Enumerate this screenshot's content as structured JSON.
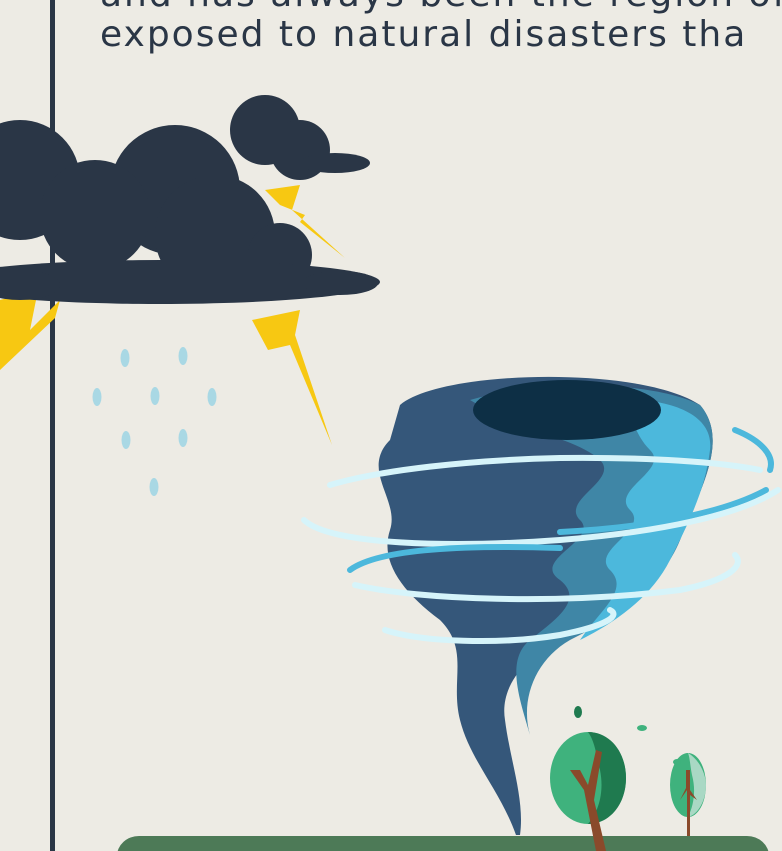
{
  "text": {
    "line1": "and has always been the region of",
    "line2": "exposed to natural disasters tha"
  },
  "colors": {
    "background": "#edebe4",
    "dark": "#2a3646",
    "lightning": "#f7c812",
    "rain": "#a9d8e4",
    "tornado_light": "#4cb8dc",
    "tornado_mid": "#3f86a6",
    "tornado_dark": "#35577a",
    "swirl": "#d6f4fa",
    "ground": "#4d7a57",
    "tree_dark": "#1f7a4f",
    "tree_light": "#3fb27d",
    "trunk": "#8a4a2b"
  },
  "icons": [
    "storm-cloud-icon",
    "lightning-icon",
    "raindrop-icon",
    "tornado-icon",
    "tree-icon",
    "ground-icon"
  ]
}
